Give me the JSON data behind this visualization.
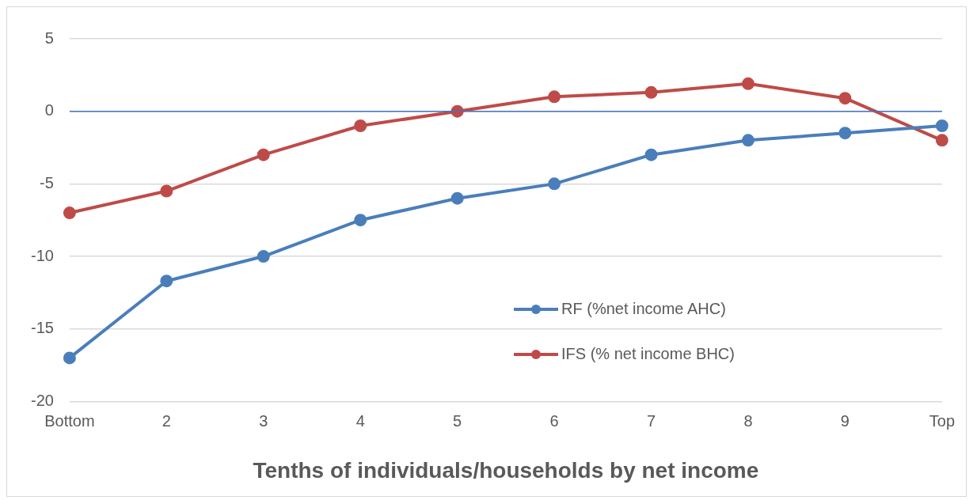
{
  "chart_data": {
    "type": "line",
    "xlabel": "Tenths of individuals/households by net income",
    "categories": [
      "Bottom",
      "2",
      "3",
      "4",
      "5",
      "6",
      "7",
      "8",
      "9",
      "Top"
    ],
    "series": [
      {
        "name": "RF (%net income  AHC)",
        "color": "#4a7ebb",
        "values": [
          -17,
          -11.7,
          -10,
          -7.5,
          -6,
          -5,
          -3,
          -2,
          -1.5,
          -1
        ]
      },
      {
        "name": "IFS (% net income BHC)",
        "color": "#be4b48",
        "values": [
          -7,
          -5.5,
          -3,
          -1,
          0,
          1,
          1.3,
          1.9,
          0.9,
          -2
        ]
      }
    ],
    "ylim": [
      -20,
      5
    ],
    "yticks": [
      -20,
      -15,
      -10,
      -5,
      0,
      5
    ],
    "grid": "y",
    "legend": "bottom right",
    "marker": "circle",
    "ref_lines": [
      {
        "axis": "y",
        "value": 0,
        "color": "#4472c4"
      }
    ]
  }
}
